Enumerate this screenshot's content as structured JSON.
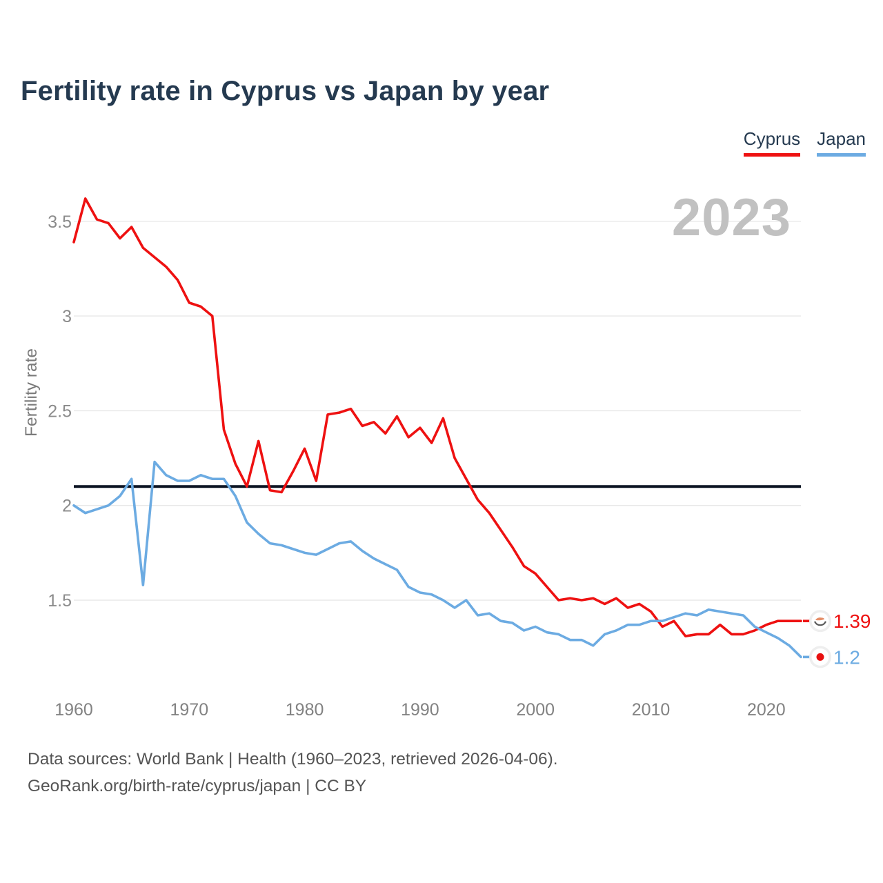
{
  "header": {
    "title": "Fertility rate in Cyprus vs Japan by year"
  },
  "legend": [
    {
      "label": "Cyprus",
      "color": "#ee1111"
    },
    {
      "label": "Japan",
      "color": "#6cabe2"
    }
  ],
  "watermark": "2023",
  "chart_data": {
    "type": "line",
    "title": "Fertility rate in Cyprus vs Japan by year",
    "xlabel": "",
    "ylabel": "Fertility rate",
    "grid": true,
    "legend_position": "top-right",
    "ylim": [
      1.1,
      3.72
    ],
    "yticks": [
      3.5,
      3,
      2.5,
      2,
      1.5
    ],
    "xticks": [
      1960,
      1970,
      1980,
      1990,
      2000,
      2010,
      2020
    ],
    "reference_line": {
      "value": 2.1,
      "color": "#0c1422"
    },
    "x": [
      1960,
      1961,
      1962,
      1963,
      1964,
      1965,
      1966,
      1967,
      1968,
      1969,
      1970,
      1971,
      1972,
      1973,
      1974,
      1975,
      1976,
      1977,
      1978,
      1979,
      1980,
      1981,
      1982,
      1983,
      1984,
      1985,
      1986,
      1987,
      1988,
      1989,
      1990,
      1991,
      1992,
      1993,
      1994,
      1995,
      1996,
      1997,
      1998,
      1999,
      2000,
      2001,
      2002,
      2003,
      2004,
      2005,
      2006,
      2007,
      2008,
      2009,
      2010,
      2011,
      2012,
      2013,
      2014,
      2015,
      2016,
      2017,
      2018,
      2019,
      2020,
      2021,
      2022,
      2023
    ],
    "series": [
      {
        "name": "Cyprus",
        "color": "#ee1111",
        "values": [
          3.39,
          3.62,
          3.51,
          3.49,
          3.41,
          3.47,
          3.36,
          3.31,
          3.26,
          3.19,
          3.07,
          3.05,
          3.0,
          2.4,
          2.22,
          2.1,
          2.34,
          2.08,
          2.07,
          2.18,
          2.3,
          2.13,
          2.48,
          2.49,
          2.51,
          2.42,
          2.44,
          2.38,
          2.47,
          2.36,
          2.41,
          2.33,
          2.46,
          2.25,
          2.14,
          2.03,
          1.96,
          1.87,
          1.78,
          1.68,
          1.64,
          1.57,
          1.5,
          1.51,
          1.5,
          1.51,
          1.48,
          1.51,
          1.46,
          1.48,
          1.44,
          1.36,
          1.39,
          1.31,
          1.32,
          1.32,
          1.37,
          1.32,
          1.32,
          1.34,
          1.37,
          1.39,
          1.39,
          1.39
        ]
      },
      {
        "name": "Japan",
        "color": "#6cabe2",
        "values": [
          2.0,
          1.96,
          1.98,
          2.0,
          2.05,
          2.14,
          1.58,
          2.23,
          2.16,
          2.13,
          2.13,
          2.16,
          2.14,
          2.14,
          2.05,
          1.91,
          1.85,
          1.8,
          1.79,
          1.77,
          1.75,
          1.74,
          1.77,
          1.8,
          1.81,
          1.76,
          1.72,
          1.69,
          1.66,
          1.57,
          1.54,
          1.53,
          1.5,
          1.46,
          1.5,
          1.42,
          1.43,
          1.39,
          1.38,
          1.34,
          1.36,
          1.33,
          1.32,
          1.29,
          1.29,
          1.26,
          1.32,
          1.34,
          1.37,
          1.37,
          1.39,
          1.39,
          1.41,
          1.43,
          1.42,
          1.45,
          1.44,
          1.43,
          1.42,
          1.36,
          1.33,
          1.3,
          1.26,
          1.2
        ]
      }
    ],
    "end_labels": [
      {
        "series": "Cyprus",
        "value": "1.39",
        "flag": "cyprus-flag"
      },
      {
        "series": "Japan",
        "value": "1.2",
        "flag": "japan-flag"
      }
    ]
  },
  "footer": {
    "line1": "Data sources: World Bank | Health (1960–2023, retrieved 2026-04-06).",
    "line2": "GeoRank.org/birth-rate/cyprus/japan | CC BY"
  }
}
